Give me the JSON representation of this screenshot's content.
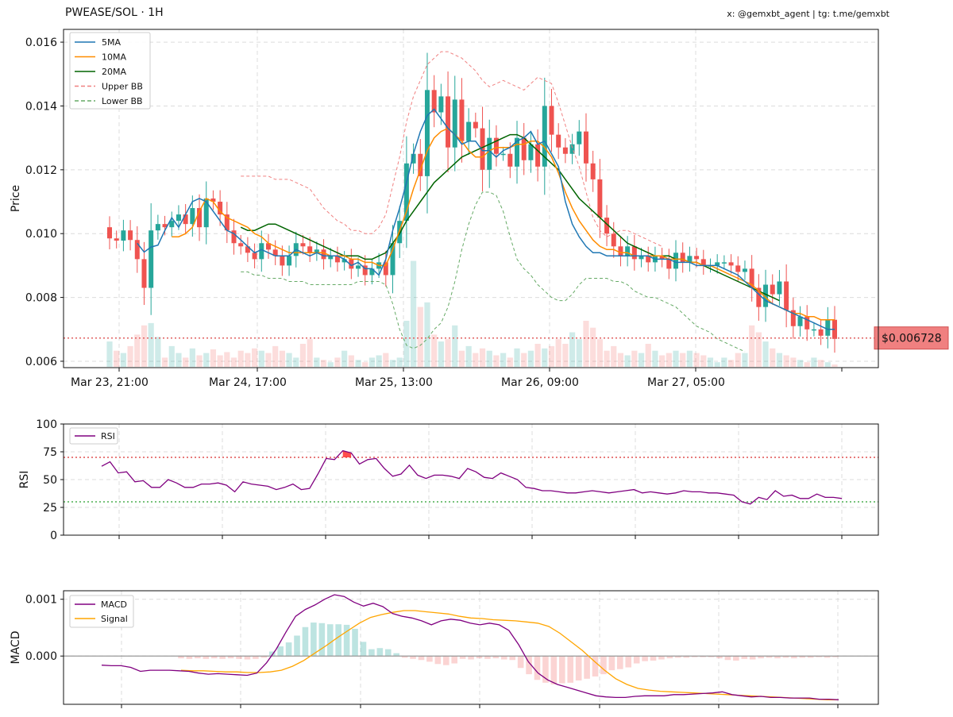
{
  "header": {
    "title": "PWEASE/SOL · 1H",
    "credit": "x: @gemxbt_agent | tg: t.me/gemxbt"
  },
  "colors": {
    "up": "#26a69a",
    "down": "#ef5350",
    "ma5": "#1f77b4",
    "ma10": "#ff8c00",
    "ma20": "#006400",
    "upper_bb": "#f08080",
    "lower_bb": "#66aa66",
    "rsi": "#800080",
    "macd": "#800080",
    "signal": "#ffa500",
    "price_line": "#e06060"
  },
  "chart_data": [
    {
      "type": "candlestick",
      "ylabel": "Price",
      "ylim": [
        0.0058,
        0.0164
      ],
      "yticks": [
        "0.006",
        "0.008",
        "0.010",
        "0.012",
        "0.014",
        "0.016"
      ],
      "xticks": [
        "Mar 23, 21:00",
        "Mar 24, 17:00",
        "Mar 25, 13:00",
        "Mar 26, 09:00",
        "Mar 27, 05:00"
      ],
      "legend": {
        "position": "top-left",
        "entries": [
          "5MA",
          "10MA",
          "20MA",
          "Upper BB",
          "Lower BB"
        ]
      },
      "current_price": {
        "value": 0.006728,
        "label": "$0.006728"
      },
      "candles_close": [
        0.00985,
        0.00978,
        0.0101,
        0.0098,
        0.0092,
        0.0083,
        0.0101,
        0.0103,
        0.0102,
        0.0104,
        0.0106,
        0.0103,
        0.0108,
        0.0102,
        0.0111,
        0.011,
        0.0106,
        0.0101,
        0.0097,
        0.0096,
        0.0094,
        0.0092,
        0.0097,
        0.0095,
        0.0093,
        0.009,
        0.0093,
        0.0097,
        0.0096,
        0.0094,
        0.0095,
        0.0092,
        0.0093,
        0.0091,
        0.0092,
        0.0089,
        0.009,
        0.0087,
        0.0089,
        0.0091,
        0.0087,
        0.0097,
        0.0104,
        0.0122,
        0.0125,
        0.0118,
        0.0145,
        0.0138,
        0.0143,
        0.0127,
        0.0142,
        0.0129,
        0.0135,
        0.0133,
        0.012,
        0.013,
        0.0125,
        0.0125,
        0.0121,
        0.013,
        0.0123,
        0.0128,
        0.0121,
        0.014,
        0.0131,
        0.0127,
        0.0125,
        0.0128,
        0.0132,
        0.0122,
        0.0117,
        0.0105,
        0.01,
        0.0096,
        0.0093,
        0.0096,
        0.0092,
        0.0093,
        0.0091,
        0.0093,
        0.0092,
        0.0089,
        0.0094,
        0.0091,
        0.0093,
        0.0092,
        0.009,
        0.009,
        0.0091,
        0.0091,
        0.009,
        0.0088,
        0.0089,
        0.0083,
        0.0077,
        0.0084,
        0.0081,
        0.0085,
        0.0076,
        0.0071,
        0.0074,
        0.007,
        0.007,
        0.0068,
        0.0073,
        0.0067
      ],
      "ma5": [
        null,
        null,
        null,
        null,
        0.0097,
        0.00942,
        0.00958,
        0.00964,
        0.0101,
        0.0105,
        0.0102,
        0.0106,
        0.011,
        0.0111,
        0.011,
        0.0107,
        0.0104,
        0.0101,
        0.01,
        0.0098,
        0.0096,
        0.0094,
        0.0095,
        0.0094,
        0.0093,
        0.0093,
        0.0093,
        0.0095,
        0.0094,
        0.0093,
        0.0094,
        0.0093,
        0.0093,
        0.0093,
        0.0092,
        0.009,
        0.0091,
        0.0089,
        0.0089,
        0.0087,
        0.0092,
        0.0101,
        0.0108,
        0.0116,
        0.0125,
        0.0132,
        0.0137,
        0.0139,
        0.0136,
        0.0133,
        0.0131,
        0.0128,
        0.0129,
        0.0129,
        0.0126,
        0.0126,
        0.0124,
        0.0126,
        0.0127,
        0.0129,
        0.013,
        0.0132,
        0.0128,
        0.0129,
        0.0125,
        0.0121,
        0.011,
        0.0103,
        0.0099,
        0.0096,
        0.0094,
        0.0094,
        0.0093,
        0.0093,
        0.0093,
        0.0093,
        0.0093,
        0.0093,
        0.0093,
        0.0092,
        0.0092,
        0.0092,
        0.0091,
        0.0091,
        0.0091,
        0.009,
        0.009,
        0.009,
        0.009,
        0.0089,
        0.0088,
        0.0087,
        0.0085,
        0.0083,
        0.0081,
        0.0079,
        0.0078,
        0.0077,
        0.0076,
        0.0075,
        0.0074,
        0.0073,
        0.0072,
        0.0071,
        0.007,
        0.007
      ],
      "ma10": [
        null,
        null,
        null,
        null,
        null,
        null,
        null,
        null,
        null,
        0.0099,
        0.0099,
        0.01,
        0.0102,
        0.0107,
        0.0111,
        0.011,
        0.0107,
        0.0105,
        0.0104,
        0.0103,
        0.0102,
        0.01,
        0.0099,
        0.0097,
        0.0096,
        0.0095,
        0.0094,
        0.0094,
        0.0094,
        0.0094,
        0.0094,
        0.0094,
        0.0093,
        0.0093,
        0.0093,
        0.0092,
        0.0092,
        0.0091,
        0.0091,
        0.009,
        0.009,
        0.0095,
        0.0101,
        0.0107,
        0.0114,
        0.012,
        0.0126,
        0.013,
        0.0132,
        0.0133,
        0.0131,
        0.0129,
        0.0126,
        0.0124,
        0.0124,
        0.0126,
        0.0127,
        0.0127,
        0.0127,
        0.0128,
        0.0128,
        0.0129,
        0.0129,
        0.0127,
        0.0124,
        0.0119,
        0.0113,
        0.0108,
        0.0104,
        0.0101,
        0.0098,
        0.0096,
        0.0095,
        0.0095,
        0.0094,
        0.0094,
        0.0093,
        0.0093,
        0.0093,
        0.0093,
        0.0093,
        0.0092,
        0.0092,
        0.0092,
        0.0091,
        0.0091,
        0.009,
        0.009,
        0.0089,
        0.0088,
        0.0087,
        0.0086,
        0.0085,
        0.0084,
        0.0082,
        0.008,
        0.0078,
        0.0077,
        0.0076,
        0.0075,
        0.0075,
        0.0074,
        0.0074,
        0.0073,
        0.0073,
        0.0073
      ],
      "ma20": [
        null,
        null,
        null,
        null,
        null,
        null,
        null,
        null,
        null,
        null,
        null,
        null,
        null,
        null,
        null,
        null,
        null,
        null,
        null,
        0.0102,
        0.0101,
        0.0101,
        0.0102,
        0.0103,
        0.0103,
        0.0102,
        0.0101,
        0.01,
        0.0099,
        0.0098,
        0.0097,
        0.0096,
        0.0095,
        0.0094,
        0.0093,
        0.0093,
        0.0093,
        0.0092,
        0.0092,
        0.0093,
        0.0094,
        0.0097,
        0.01,
        0.0104,
        0.0107,
        0.011,
        0.0113,
        0.0116,
        0.0118,
        0.012,
        0.0122,
        0.0124,
        0.0125,
        0.0126,
        0.0127,
        0.0128,
        0.0129,
        0.013,
        0.0131,
        0.0131,
        0.013,
        0.0128,
        0.0126,
        0.0124,
        0.0122,
        0.012,
        0.0117,
        0.0114,
        0.0111,
        0.0109,
        0.0107,
        0.0105,
        0.0103,
        0.0101,
        0.0099,
        0.0097,
        0.0096,
        0.0095,
        0.0094,
        0.0093,
        0.0093,
        0.0093,
        0.0092,
        0.0092,
        0.0091,
        0.0091,
        0.009,
        0.0089,
        0.0088,
        0.0087,
        0.0086,
        0.0085,
        0.0084,
        0.0083,
        0.0082,
        0.0081,
        0.008,
        0.0079
      ],
      "upper_bb": [
        null,
        null,
        null,
        null,
        null,
        null,
        null,
        null,
        null,
        null,
        null,
        null,
        null,
        null,
        null,
        null,
        null,
        null,
        null,
        0.0118,
        0.0118,
        0.0118,
        0.0118,
        0.0118,
        0.0117,
        0.0117,
        0.0117,
        0.0116,
        0.0115,
        0.0114,
        0.0111,
        0.0108,
        0.0106,
        0.0104,
        0.0103,
        0.0101,
        0.0101,
        0.01,
        0.01,
        0.0102,
        0.0106,
        0.0115,
        0.0124,
        0.0135,
        0.0143,
        0.0148,
        0.0153,
        0.0155,
        0.0157,
        0.0157,
        0.0156,
        0.0155,
        0.0153,
        0.0151,
        0.0148,
        0.0146,
        0.0147,
        0.0148,
        0.0147,
        0.0146,
        0.0145,
        0.0147,
        0.0149,
        0.0148,
        0.0147,
        0.0141,
        0.0134,
        0.0127,
        0.0121,
        0.0113,
        0.0105,
        0.0101,
        0.0099,
        0.01,
        0.0101,
        0.0101,
        0.01,
        0.0099,
        0.0098,
        0.0097,
        0.0096
      ],
      "lower_bb": [
        null,
        null,
        null,
        null,
        null,
        null,
        null,
        null,
        null,
        null,
        null,
        null,
        null,
        null,
        null,
        null,
        null,
        null,
        null,
        0.0088,
        0.0088,
        0.0087,
        0.0087,
        0.0086,
        0.0086,
        0.0086,
        0.0085,
        0.0085,
        0.0085,
        0.0084,
        0.0084,
        0.0084,
        0.0084,
        0.0084,
        0.0084,
        0.0084,
        0.0085,
        0.0085,
        0.0085,
        0.0085,
        0.0084,
        0.0078,
        0.007,
        0.0065,
        0.0064,
        0.0065,
        0.0067,
        0.007,
        0.0072,
        0.0077,
        0.0085,
        0.0095,
        0.0103,
        0.0109,
        0.0113,
        0.0113,
        0.0112,
        0.0107,
        0.0099,
        0.0092,
        0.0089,
        0.0087,
        0.0084,
        0.0082,
        0.008,
        0.0079,
        0.0079,
        0.0081,
        0.0084,
        0.0086,
        0.0086,
        0.0086,
        0.0086,
        0.0085,
        0.0085,
        0.0084,
        0.0082,
        0.0081,
        0.008,
        0.008,
        0.0079,
        0.0078,
        0.0077,
        0.0075,
        0.0073,
        0.0071,
        0.007,
        0.0069,
        0.0067,
        0.0066,
        0.0065,
        0.0064,
        0.0063
      ],
      "volume_relative": [
        0.55,
        0.35,
        0.3,
        0.45,
        0.7,
        0.9,
        0.95,
        0.65,
        0.2,
        0.45,
        0.3,
        0.2,
        0.4,
        0.25,
        0.3,
        0.38,
        0.25,
        0.32,
        0.2,
        0.35,
        0.3,
        0.4,
        0.35,
        0.3,
        0.45,
        0.35,
        0.3,
        0.2,
        0.5,
        0.6,
        0.2,
        0.15,
        0.1,
        0.2,
        0.35,
        0.25,
        0.15,
        0.1,
        0.2,
        0.25,
        0.3,
        0.15,
        0.2,
        1.0,
        2.3,
        1.3,
        1.4,
        0.7,
        0.55,
        0.6,
        0.9,
        0.35,
        0.45,
        0.3,
        0.4,
        0.35,
        0.25,
        0.3,
        0.2,
        0.4,
        0.3,
        0.35,
        0.5,
        0.4,
        0.45,
        0.6,
        0.5,
        0.75,
        0.6,
        1.0,
        0.85,
        0.6,
        0.35,
        0.45,
        0.3,
        0.25,
        0.35,
        0.3,
        0.5,
        0.35,
        0.25,
        0.3,
        0.35,
        0.3,
        0.35,
        0.3,
        0.25,
        0.2,
        0.1,
        0.2,
        0.15,
        0.3,
        0.3,
        0.9,
        0.75,
        0.55,
        0.4,
        0.3,
        0.25,
        0.2,
        0.15,
        0.1,
        0.2,
        0.15,
        0.1,
        0.05
      ]
    },
    {
      "type": "line",
      "ylabel": "RSI",
      "ylim": [
        0,
        100
      ],
      "yticks": [
        "0",
        "25",
        "50",
        "75",
        "100"
      ],
      "legend": {
        "position": "top-left",
        "entries": [
          "RSI"
        ]
      },
      "thresholds": [
        70,
        30
      ],
      "rsi": [
        62,
        66,
        56,
        57,
        48,
        49,
        43,
        43,
        50,
        47,
        43,
        43,
        46,
        46,
        47,
        45,
        39,
        48,
        46,
        45,
        44,
        41,
        43,
        46,
        41,
        42,
        55,
        69,
        68,
        76,
        74,
        64,
        68,
        69,
        60,
        53,
        55,
        63,
        54,
        51,
        54,
        54,
        53,
        51,
        60,
        57,
        52,
        51,
        56,
        53,
        50,
        43,
        42,
        40,
        40,
        39,
        38,
        38,
        39,
        40,
        39,
        38,
        39,
        40,
        41,
        38,
        39,
        38,
        37,
        38,
        40,
        39,
        39,
        38,
        38,
        37,
        36,
        30,
        28,
        34,
        32,
        40,
        35,
        36,
        33,
        33,
        37,
        34,
        34,
        33
      ]
    },
    {
      "type": "line",
      "ylabel": "MACD",
      "ylim": [
        -0.00085,
        0.00115
      ],
      "yticks": [
        "0.000",
        "0.001"
      ],
      "legend": {
        "position": "top-left",
        "entries": [
          "MACD",
          "Signal"
        ]
      },
      "macd": [
        -0.00016,
        -0.00017,
        -0.00017,
        -0.0002,
        -0.00027,
        -0.00025,
        -0.00025,
        -0.00025,
        -0.00026,
        -0.00027,
        -0.0003,
        -0.00032,
        -0.00031,
        -0.00032,
        -0.00033,
        -0.00034,
        -0.0003,
        -0.00012,
        0.00012,
        0.00042,
        0.0007,
        0.00082,
        0.0009,
        0.001,
        0.00108,
        0.00105,
        0.00095,
        0.00088,
        0.00093,
        0.00087,
        0.00075,
        0.0007,
        0.00067,
        0.00062,
        0.00055,
        0.00062,
        0.00065,
        0.00063,
        0.00058,
        0.00055,
        0.00058,
        0.00055,
        0.00045,
        0.0002,
        -0.0001,
        -0.0003,
        -0.00042,
        -0.0005,
        -0.00055,
        -0.0006,
        -0.00065,
        -0.0007,
        -0.00072,
        -0.00073,
        -0.00073,
        -0.00071,
        -0.0007,
        -0.0007,
        -0.0007,
        -0.00068,
        -0.00068,
        -0.00067,
        -0.00066,
        -0.00065,
        -0.00063,
        -0.00068,
        -0.0007,
        -0.00072,
        -0.00071,
        -0.00073,
        -0.00073,
        -0.00074,
        -0.00074,
        -0.00074,
        -0.00076,
        -0.00076,
        -0.00077
      ],
      "signal": [
        -0.00025,
        -0.00026,
        -0.00026,
        -0.00027,
        -0.00028,
        -0.00028,
        -0.00029,
        -0.00029,
        -0.00028,
        -0.00025,
        -0.00018,
        -8e-05,
        5e-05,
        0.00018,
        0.00032,
        0.00045,
        0.00058,
        0.00068,
        0.00073,
        0.00077,
        0.0008,
        0.0008,
        0.00078,
        0.00076,
        0.00074,
        0.0007,
        0.00067,
        0.00066,
        0.00064,
        0.00063,
        0.00062,
        0.0006,
        0.00058,
        0.00052,
        0.0004,
        0.00025,
        0.0001,
        -8e-05,
        -0.00025,
        -0.0004,
        -0.0005,
        -0.00057,
        -0.0006,
        -0.00062,
        -0.00063,
        -0.00064,
        -0.00065,
        -0.00066,
        -0.00067,
        -0.00068,
        -0.00069,
        -0.0007,
        -0.00071,
        -0.00072,
        -0.00073,
        -0.00074,
        -0.00075,
        -0.00076,
        -0.00077,
        -0.00077
      ],
      "histogram": [
        -4e-05,
        -5e-05,
        -4e-05,
        -5e-05,
        -4e-05,
        -5e-05,
        -4e-05,
        -5e-05,
        -6e-05,
        -5e-05,
        -3e-05,
        8e-05,
        0.00017,
        0.00024,
        0.00036,
        0.00051,
        0.00059,
        0.00058,
        0.00056,
        0.00056,
        0.00055,
        0.00048,
        0.00025,
        0.00012,
        0.00014,
        0.00012,
        5e-05,
        -3e-05,
        -5e-05,
        -7e-05,
        -0.0001,
        -0.00014,
        -0.00016,
        -0.00013,
        -5e-05,
        -6e-05,
        -4e-05,
        -5e-05,
        -4e-05,
        -6e-05,
        -7e-05,
        -0.00021,
        -0.00032,
        -0.00042,
        -0.00047,
        -0.0005,
        -0.00048,
        -0.00047,
        -0.00043,
        -0.0004,
        -0.00036,
        -0.00032,
        -0.00025,
        -0.00023,
        -0.0002,
        -0.00013,
        -9e-05,
        -8e-05,
        -6e-05,
        -4e-05,
        -3e-05,
        -3e-05,
        -2e-05,
        -2e-05,
        -2e-05,
        -4e-05,
        -7e-05,
        -8e-05,
        -5e-05,
        -6e-05,
        -4e-05,
        -3e-05,
        -4e-05,
        -3e-05,
        -4e-05,
        -3e-05,
        -3e-05,
        -2e-05,
        -3e-05,
        -2e-05
      ]
    }
  ]
}
